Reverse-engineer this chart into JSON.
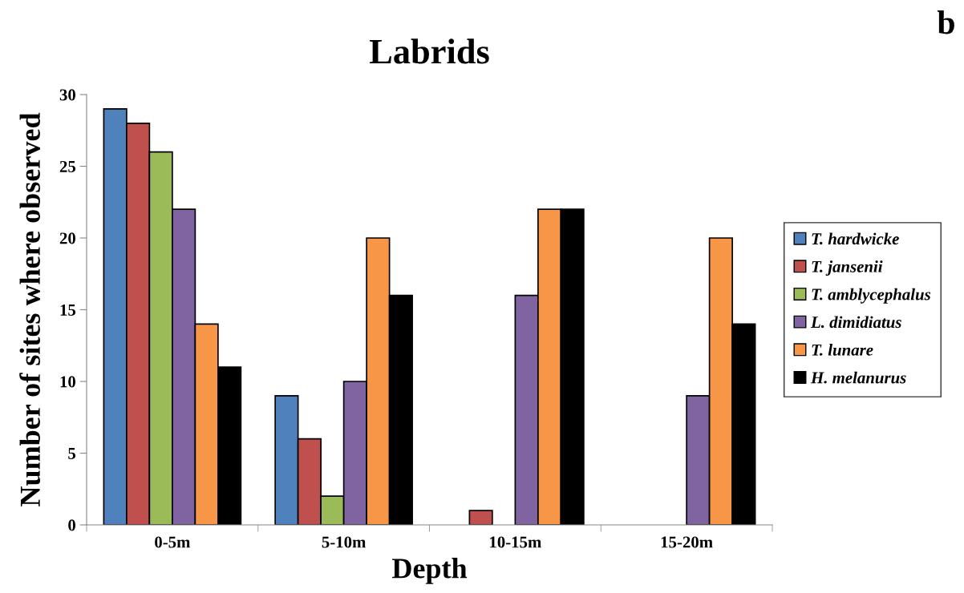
{
  "chart_data": {
    "type": "bar",
    "title": "Labrids",
    "xlabel": "Depth",
    "ylabel": "Number of sites where observed",
    "categories": [
      "0-5m",
      "5-10m",
      "10-15m",
      "15-20m"
    ],
    "series": [
      {
        "name": "T. hardwicke",
        "color": "#4f81bd",
        "values": [
          29,
          9,
          0,
          0
        ]
      },
      {
        "name": "T. jansenii",
        "color": "#c0504d",
        "values": [
          28,
          6,
          1,
          0
        ]
      },
      {
        "name": "T. amblycephalus",
        "color": "#9bbb59",
        "values": [
          26,
          2,
          0,
          0
        ]
      },
      {
        "name": "L. dimidiatus",
        "color": "#8064a2",
        "values": [
          22,
          10,
          16,
          9
        ]
      },
      {
        "name": "T. lunare",
        "color": "#f79646",
        "values": [
          14,
          20,
          22,
          20
        ]
      },
      {
        "name": "H. melanurus",
        "color": "#000000",
        "values": [
          11,
          16,
          22,
          14
        ]
      }
    ],
    "ylim": [
      0,
      30
    ],
    "yticks": [
      0,
      5,
      10,
      15,
      20,
      25,
      30
    ],
    "grid": false,
    "legend": "right",
    "annotations": [
      "b"
    ]
  }
}
